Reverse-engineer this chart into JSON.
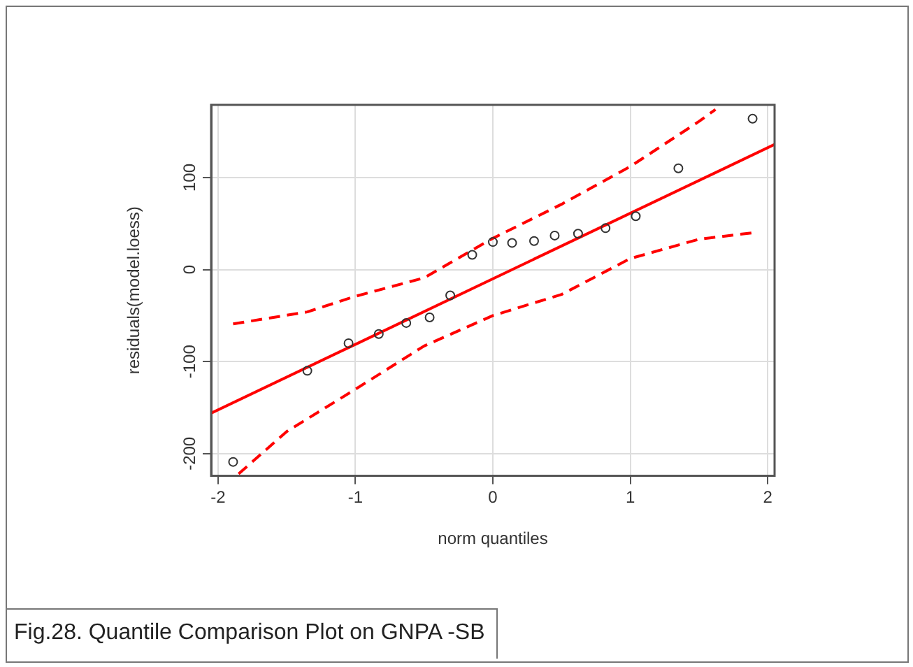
{
  "chart_data": {
    "type": "scatter",
    "xlabel": "norm quantiles",
    "ylabel": "residuals(model.loess)",
    "xlim": [
      -2.05,
      2.05
    ],
    "ylim": [
      -224,
      179
    ],
    "xticks": [
      -2,
      -1,
      0,
      1,
      2
    ],
    "yticks": [
      -200,
      -100,
      0,
      100
    ],
    "grid": true,
    "legend": false,
    "marker": "circle",
    "annotations": [
      "Fig.28. Quantile Comparison Plot on GNPA -SB"
    ],
    "series": [
      {
        "type": "scatter",
        "color": "#333333",
        "x": [
          -1.89,
          -1.35,
          -1.05,
          -0.83,
          -0.63,
          -0.46,
          -0.31,
          -0.15,
          0,
          0.14,
          0.3,
          0.45,
          0.62,
          0.82,
          1.04,
          1.35,
          1.89
        ],
        "values": [
          -209,
          -110,
          -80,
          -70,
          -58,
          -52,
          -28,
          16,
          30,
          29,
          31,
          37,
          39,
          45,
          58,
          110,
          164
        ]
      },
      {
        "type": "line",
        "color": "#ff0000",
        "line_style": "solid",
        "marker": "none",
        "x": [
          -2.05,
          2.05
        ],
        "values": [
          -156,
          136
        ]
      },
      {
        "type": "line",
        "color": "#ff0000",
        "line_style": "dashed",
        "marker": "none",
        "x": [
          -1.89,
          -1.35,
          -1,
          -0.5,
          0,
          0.5,
          1,
          1.5,
          1.62
        ],
        "values": [
          -59,
          -46,
          -29,
          -9,
          34,
          71,
          112,
          161,
          174
        ]
      },
      {
        "type": "line",
        "color": "#ff0000",
        "line_style": "dashed",
        "marker": "none",
        "x": [
          -1.85,
          -1.5,
          -1,
          -0.5,
          0,
          0.5,
          1,
          1.5,
          1.89
        ],
        "values": [
          -222,
          -176,
          -130,
          -83,
          -50,
          -27,
          12,
          33,
          40
        ]
      }
    ]
  }
}
